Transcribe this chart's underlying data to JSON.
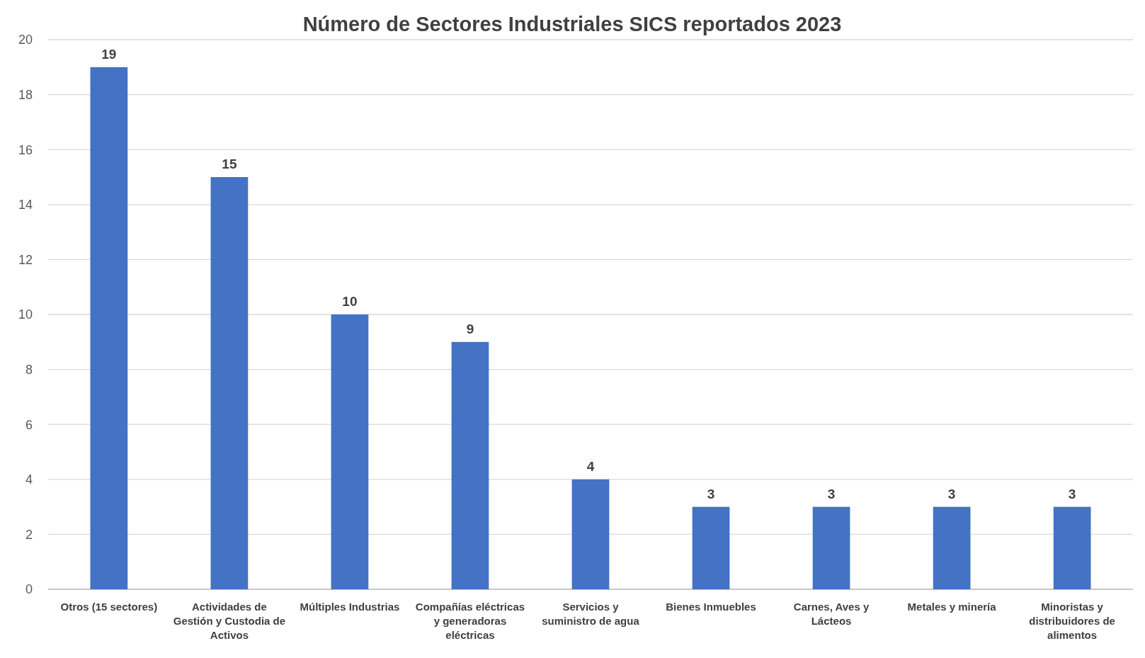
{
  "chart_data": {
    "type": "bar",
    "title": "Número de Sectores Industriales SICS reportados 2023",
    "categories": [
      "Otros (15 sectores)",
      "Actividades de Gestión y Custodia de Activos",
      "Múltiples Industrias",
      "Compañías eléctricas y generadoras eléctricas",
      "Servicios y suministro de agua",
      "Bienes Inmuebles",
      "Carnes, Aves y Lácteos",
      "Metales y minería",
      "Minoristas y distribuidores de alimentos"
    ],
    "values": [
      19,
      15,
      10,
      9,
      4,
      3,
      3,
      3,
      3
    ],
    "color": "#4472c4",
    "ylim": [
      0,
      20
    ],
    "yticks": [
      0,
      2,
      4,
      6,
      8,
      10,
      12,
      14,
      16,
      18,
      20
    ],
    "grid": "y",
    "data_labels": true
  }
}
